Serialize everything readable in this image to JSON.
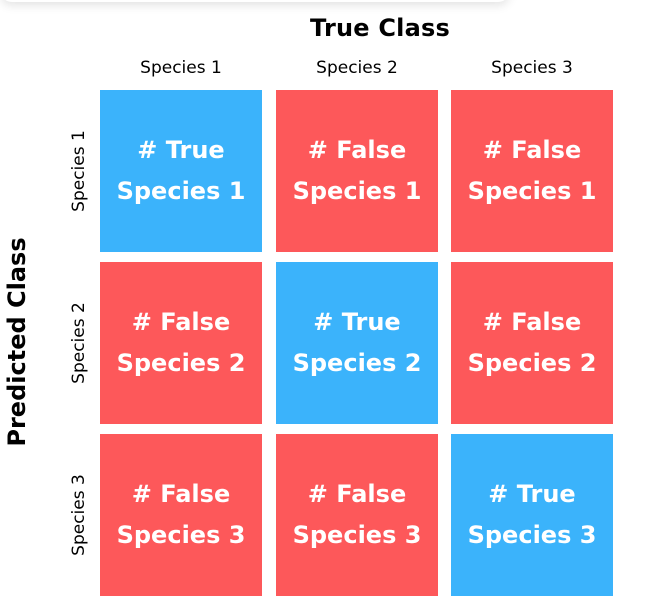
{
  "colors": {
    "true_cell": "#3bb3fb",
    "false_cell": "#fd585a",
    "text_on_cell": "#ffffff",
    "label_text": "#000000"
  },
  "titles": {
    "top": "True Class",
    "left": "Predicted Class"
  },
  "columns": [
    "Species 1",
    "Species 2",
    "Species 3"
  ],
  "rows": [
    "Species 1",
    "Species 2",
    "Species 3"
  ],
  "cells": [
    [
      {
        "line1": "# True",
        "line2": "Species 1",
        "kind": "true"
      },
      {
        "line1": "# False",
        "line2": "Species 1",
        "kind": "false"
      },
      {
        "line1": "# False",
        "line2": "Species 1",
        "kind": "false"
      }
    ],
    [
      {
        "line1": "# False",
        "line2": "Species 2",
        "kind": "false"
      },
      {
        "line1": "# True",
        "line2": "Species 2",
        "kind": "true"
      },
      {
        "line1": "# False",
        "line2": "Species 2",
        "kind": "false"
      }
    ],
    [
      {
        "line1": "# False",
        "line2": "Species 3",
        "kind": "false"
      },
      {
        "line1": "# False",
        "line2": "Species 3",
        "kind": "false"
      },
      {
        "line1": "# True",
        "line2": "Species 3",
        "kind": "true"
      }
    ]
  ]
}
